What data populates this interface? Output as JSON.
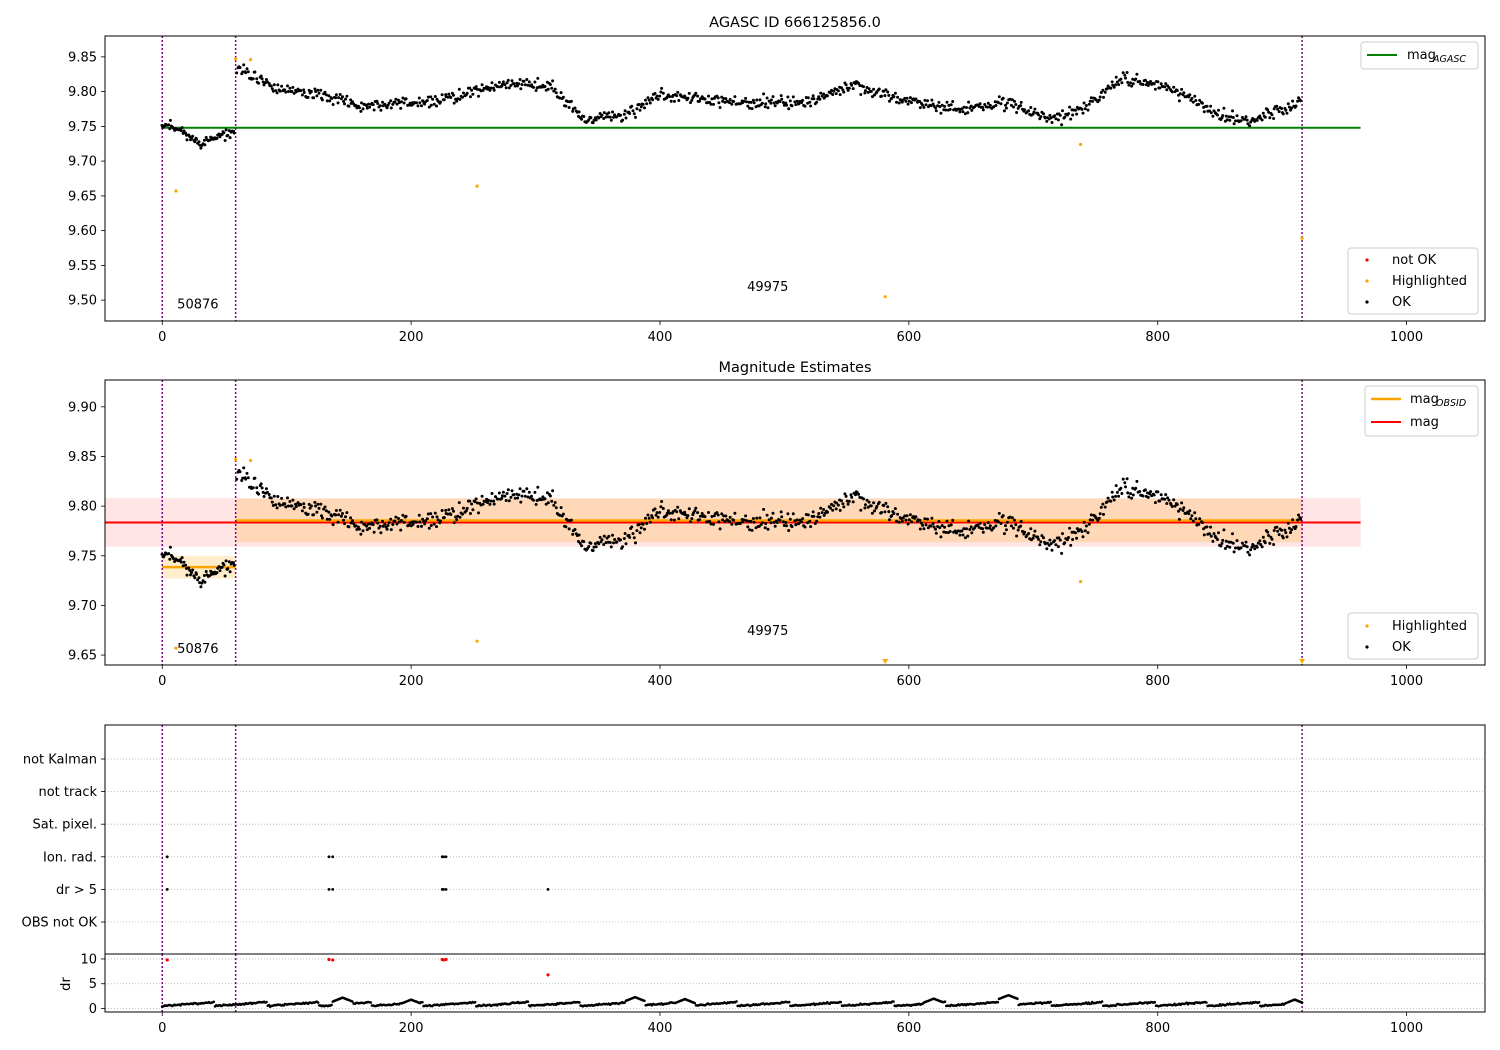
{
  "chart_data": [
    {
      "type": "scatter",
      "title": "AGASC ID 666125856.0",
      "xlim": [
        -46,
        1063
      ],
      "ylim": [
        9.47,
        9.88
      ],
      "xticks": [
        0,
        200,
        400,
        600,
        800,
        1000
      ],
      "yticks": [
        9.5,
        9.55,
        9.6,
        9.65,
        9.7,
        9.75,
        9.8,
        9.85
      ],
      "grid": false,
      "vlines": [
        0,
        59,
        916
      ],
      "obsid_labels": [
        {
          "text": "50876",
          "x": 12,
          "y": 9.488
        },
        {
          "text": "49975",
          "x": 470,
          "y": 9.513
        }
      ],
      "mag_agasc": {
        "value": 9.748,
        "x0": -1,
        "x1": 963,
        "color": "#008000"
      },
      "series": [
        {
          "name": "not OK",
          "color": "#ff0000",
          "points": []
        },
        {
          "name": "Highlighted",
          "color": "#ffa500",
          "points": [
            [
              11,
              9.657
            ],
            [
              59,
              9.847
            ],
            [
              71,
              9.846
            ],
            [
              253,
              9.664
            ],
            [
              581,
              9.505
            ],
            [
              738,
              9.724
            ],
            [
              916,
              9.589
            ]
          ]
        },
        {
          "name": "OK",
          "color": "#000000",
          "segments": [
            {
              "x0": 0,
              "x1": 58,
              "base": [
                [
                  0,
                  9.755
                ],
                [
                  15,
                  9.745
                ],
                [
                  30,
                  9.725
                ],
                [
                  45,
                  9.735
                ],
                [
                  58,
                  9.742
                ]
              ],
              "noise": 0.012,
              "n": 70,
              "seed": 11
            },
            {
              "x0": 60,
              "x1": 915,
              "base": [
                [
                  60,
                  9.835
                ],
                [
                  90,
                  9.805
                ],
                [
                  130,
                  9.795
                ],
                [
                  160,
                  9.78
                ],
                [
                  220,
                  9.785
                ],
                [
                  270,
                  9.81
                ],
                [
                  310,
                  9.81
                ],
                [
                  340,
                  9.76
                ],
                [
                  370,
                  9.765
                ],
                [
                  400,
                  9.795
                ],
                [
                  460,
                  9.785
                ],
                [
                  520,
                  9.785
                ],
                [
                  555,
                  9.81
                ],
                [
                  600,
                  9.785
                ],
                [
                  640,
                  9.775
                ],
                [
                  680,
                  9.785
                ],
                [
                  715,
                  9.76
                ],
                [
                  740,
                  9.775
                ],
                [
                  770,
                  9.82
                ],
                [
                  810,
                  9.805
                ],
                [
                  840,
                  9.775
                ],
                [
                  870,
                  9.755
                ],
                [
                  900,
                  9.775
                ],
                [
                  915,
                  9.79
                ]
              ],
              "noise": 0.014,
              "n": 930,
              "seed": 12
            }
          ]
        }
      ],
      "legend_upper": {
        "placement": "upper-right",
        "entries": [
          {
            "label": "mag",
            "sub": "AGASC",
            "color": "#008000"
          }
        ]
      },
      "legend_lower": {
        "placement": "lower-right",
        "entries": [
          {
            "label": "not OK",
            "color": "#ff0000"
          },
          {
            "label": "Highlighted",
            "color": "#ffa500"
          },
          {
            "label": "OK",
            "color": "#000000"
          }
        ]
      }
    },
    {
      "type": "scatter",
      "title": "Magnitude Estimates",
      "xlim": [
        -46,
        1063
      ],
      "ylim": [
        9.64,
        9.927
      ],
      "xticks": [
        0,
        200,
        400,
        600,
        800,
        1000
      ],
      "yticks": [
        9.65,
        9.7,
        9.75,
        9.8,
        9.85,
        9.9
      ],
      "grid": false,
      "vlines": [
        0,
        59,
        916
      ],
      "obsid_labels": [
        {
          "text": "50876",
          "x": 12,
          "y": 9.652
        },
        {
          "text": "49975",
          "x": 470,
          "y": 9.67
        }
      ],
      "mag": {
        "value": 9.7835,
        "x0": -46,
        "x1": 963,
        "band": [
          9.759,
          9.808
        ],
        "color": "#ff0000"
      },
      "mag_obsid": [
        {
          "x0": 0,
          "x1": 59,
          "value": 9.7385,
          "band": [
            9.727,
            9.75
          ]
        },
        {
          "x0": 59,
          "x1": 916,
          "value": 9.7855,
          "band": [
            9.7635,
            9.8075
          ]
        }
      ],
      "series": [
        {
          "name": "Highlighted",
          "color": "#ffa500",
          "points": [
            [
              11,
              9.657
            ],
            [
              59,
              9.847
            ],
            [
              71,
              9.846
            ],
            [
              253,
              9.664
            ],
            [
              738,
              9.724
            ]
          ],
          "below_axis_markers": [
            581,
            916
          ]
        },
        {
          "name": "OK",
          "color": "#000000",
          "same_as_first_chart": true
        }
      ],
      "legend_upper": {
        "placement": "upper-right",
        "entries": [
          {
            "label": "mag",
            "sub": "OBSID",
            "color": "#ffa500"
          },
          {
            "label": "mag",
            "color": "#ff0000"
          }
        ]
      },
      "legend_lower": {
        "placement": "lower-right",
        "entries": [
          {
            "label": "Highlighted",
            "color": "#ffa500"
          },
          {
            "label": "OK",
            "color": "#000000"
          }
        ]
      }
    },
    {
      "type": "scatter",
      "title": "",
      "xlim": [
        -46,
        1063
      ],
      "categories": [
        "not Kalman",
        "not track",
        "Sat. pixel.",
        "Ion. rad.",
        "dr > 5",
        "OBS not OK"
      ],
      "grid": "horizontal dotted",
      "vlines": [
        0,
        59,
        916
      ],
      "flags": {
        "Ion. rad.": [
          4,
          134,
          137,
          225,
          226,
          228
        ],
        "dr > 5": [
          4,
          134,
          137,
          225,
          226,
          228,
          310
        ]
      }
    },
    {
      "type": "scatter",
      "title": "",
      "ylabel": "dr",
      "xlim": [
        -46,
        1063
      ],
      "ylim": [
        -0.7,
        11
      ],
      "xticks": [
        0,
        200,
        400,
        600,
        800,
        1000
      ],
      "yticks": [
        0,
        5,
        10
      ],
      "grid": "horizontal dotted",
      "vlines": [
        0,
        59,
        916
      ],
      "series": [
        {
          "name": "dr",
          "color": "#000000",
          "baseline": 0.9,
          "noise": 0.5,
          "n": 930,
          "seed": 31,
          "bumps": [
            [
              145,
              2.2
            ],
            [
              200,
              1.8
            ],
            [
              380,
              2.3
            ],
            [
              420,
              1.9
            ],
            [
              620,
              2.0
            ],
            [
              680,
              2.7
            ],
            [
              910,
              1.8
            ]
          ]
        },
        {
          "name": "dr > 5",
          "color": "#ff0000",
          "points": [
            [
              4,
              9.8
            ],
            [
              134,
              9.9
            ],
            [
              137,
              9.8
            ],
            [
              225,
              9.9
            ],
            [
              226,
              9.8
            ],
            [
              228,
              9.9
            ],
            [
              310,
              6.8
            ]
          ]
        }
      ]
    }
  ]
}
